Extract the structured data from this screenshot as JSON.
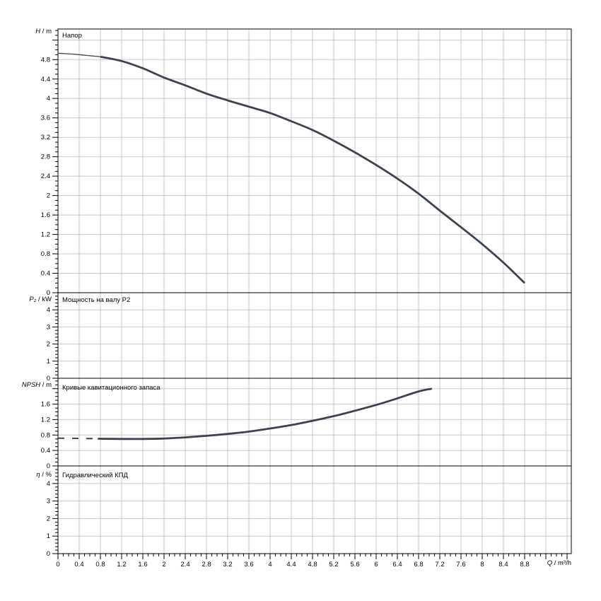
{
  "labels": {
    "separator": " / "
  },
  "colors": {
    "curve": "#3a4350",
    "grid": "#c8c8c8",
    "axis": "#000000",
    "background": "#ffffff"
  },
  "chart_data": {
    "type": "line",
    "grid": "on",
    "legend": "none",
    "x_axis": {
      "symbol": "Q",
      "unit": "m³/h",
      "min": 0,
      "max": 9.68,
      "major_step": 0.4,
      "minor_step": 0.1,
      "last_label": 8.8
    },
    "panels": [
      {
        "panel_title": "Напор",
        "y_axis": {
          "symbol": "H",
          "unit": "m",
          "min": 0,
          "ymax": 5.43,
          "label_step": 0.4,
          "label_max": 4.8,
          "minor_step": 0.1,
          "grid_step": 0.4
        },
        "series": [
          {
            "name": "head-curve-inlet",
            "style": "thin",
            "x": [
              0,
              0.3,
              0.6,
              0.8
            ],
            "y": [
              4.93,
              4.91,
              4.88,
              4.86
            ]
          },
          {
            "name": "head-curve",
            "style": "thick",
            "x": [
              0.8,
              1.2,
              1.6,
              2.0,
              2.4,
              2.8,
              3.2,
              3.6,
              4.0,
              4.4,
              4.8,
              5.2,
              5.6,
              6.0,
              6.4,
              6.8,
              7.2,
              7.6,
              8.0,
              8.4,
              8.8
            ],
            "y": [
              4.86,
              4.77,
              4.62,
              4.43,
              4.27,
              4.1,
              3.96,
              3.83,
              3.7,
              3.53,
              3.35,
              3.13,
              2.89,
              2.63,
              2.35,
              2.04,
              1.69,
              1.35,
              1.0,
              0.62,
              0.2
            ]
          }
        ]
      },
      {
        "panel_title": "Мощность на валу P2",
        "y_axis": {
          "symbol": "P₂",
          "unit": "kW",
          "min": 0,
          "ymax": 5,
          "label_step": 1,
          "label_max": 4,
          "minor_step": 0.2,
          "grid_step": 1
        },
        "series": []
      },
      {
        "panel_title": "Кривые кавитационного запаса",
        "y_axis": {
          "symbol": "NPSH",
          "unit": "m",
          "min": 0,
          "ymax": 2.27,
          "label_step": 0.4,
          "label_max": 1.6,
          "minor_step": 0.1,
          "grid_step": 0.4
        },
        "series": [
          {
            "name": "npsh-curve-inlet",
            "style": "dashed",
            "x": [
              0,
              0.25,
              0.5,
              0.75
            ],
            "y": [
              0.72,
              0.715,
              0.71,
              0.705
            ]
          },
          {
            "name": "npsh-curve",
            "style": "thick",
            "x": [
              0.75,
              1.2,
              1.6,
              2.0,
              2.4,
              2.8,
              3.2,
              3.6,
              4.0,
              4.4,
              4.8,
              5.2,
              5.6,
              6.0,
              6.4,
              6.8,
              7.05
            ],
            "y": [
              0.705,
              0.7,
              0.7,
              0.71,
              0.74,
              0.78,
              0.83,
              0.89,
              0.97,
              1.06,
              1.17,
              1.29,
              1.43,
              1.58,
              1.75,
              1.93,
              2.0
            ]
          }
        ]
      },
      {
        "panel_title": "Гидравлический КПД",
        "y_axis": {
          "symbol": "η",
          "unit": "%",
          "min": 0,
          "ymax": 5,
          "label_step": 1,
          "label_max": 4,
          "minor_step": 0.2,
          "grid_step": 1
        },
        "series": []
      }
    ]
  }
}
